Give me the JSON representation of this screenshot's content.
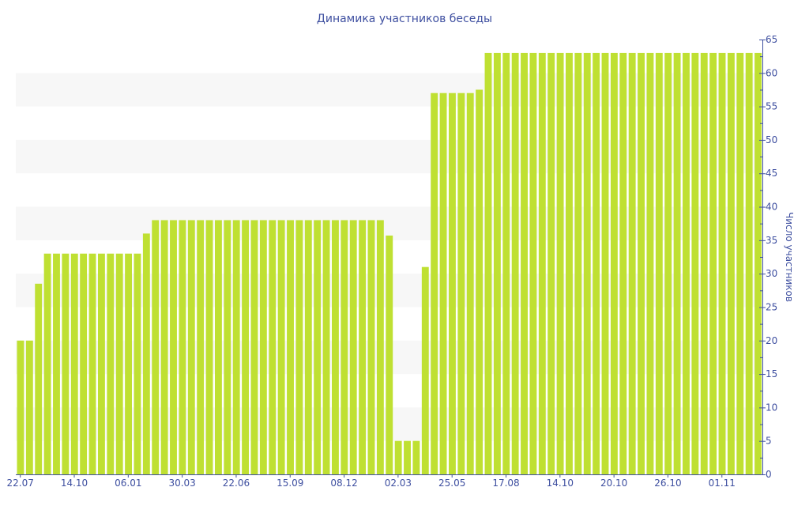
{
  "chart_data": {
    "type": "bar",
    "title": "Динамика участников беседы",
    "xlabel": "",
    "ylabel": "Число участников",
    "ylim": [
      0,
      65
    ],
    "y_ticks": [
      0,
      5,
      10,
      15,
      20,
      25,
      30,
      35,
      40,
      45,
      50,
      55,
      60,
      65
    ],
    "y_axis_position": "right",
    "grid": "alternating horizontal bands",
    "x_tick_labels": [
      {
        "bar_index": 0,
        "label": "22.07"
      },
      {
        "bar_index": 6,
        "label": "14.10"
      },
      {
        "bar_index": 12,
        "label": "06.01"
      },
      {
        "bar_index": 18,
        "label": "30.03"
      },
      {
        "bar_index": 24,
        "label": "22.06"
      },
      {
        "bar_index": 30,
        "label": "15.09"
      },
      {
        "bar_index": 36,
        "label": "08.12"
      },
      {
        "bar_index": 42,
        "label": "02.03"
      },
      {
        "bar_index": 48,
        "label": "25.05"
      },
      {
        "bar_index": 54,
        "label": "17.08"
      },
      {
        "bar_index": 60,
        "label": "14.10"
      },
      {
        "bar_index": 66,
        "label": "20.10"
      },
      {
        "bar_index": 72,
        "label": "26.10"
      },
      {
        "bar_index": 78,
        "label": "01.11"
      }
    ],
    "values": [
      20,
      20,
      28.5,
      33,
      33,
      33,
      33,
      33,
      33,
      33,
      33,
      33,
      33,
      33,
      36,
      38,
      38,
      38,
      38,
      38,
      38,
      38,
      38,
      38,
      38,
      38,
      38,
      38,
      38,
      38,
      38,
      38,
      38,
      38,
      38,
      38,
      38,
      38,
      38,
      38,
      38,
      35.7,
      5,
      5,
      5,
      31,
      57,
      57,
      57,
      57,
      57,
      57.5,
      63,
      63,
      63,
      63,
      63,
      63,
      63,
      63,
      63,
      63,
      63,
      63,
      63,
      63,
      63,
      63,
      63,
      63,
      63,
      63,
      63,
      63,
      63,
      63,
      63,
      63,
      63,
      63,
      63,
      63,
      63
    ],
    "colors": {
      "bar": "#bfe032",
      "text": "#3e4fa0",
      "band": "#f7f7f7"
    }
  }
}
